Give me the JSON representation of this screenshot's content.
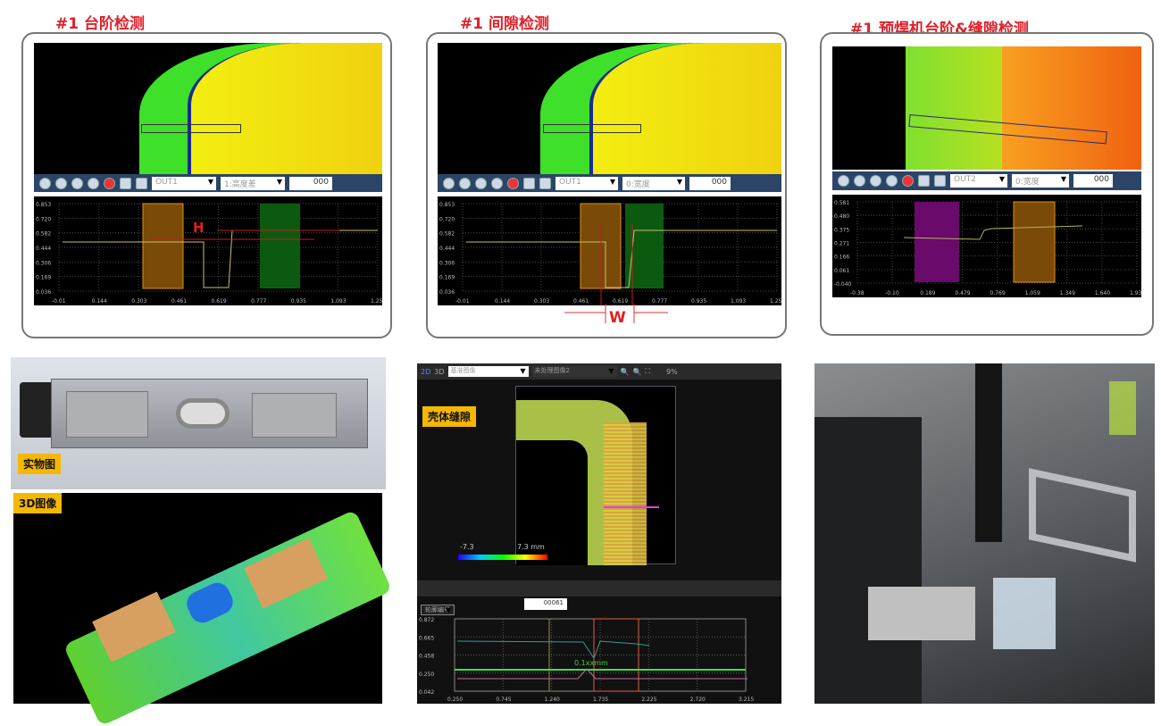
{
  "panels": [
    {
      "title": "#1  台阶检测",
      "out": "OUT1",
      "mode": "1:高度差",
      "value": "000",
      "marker": "H",
      "yticks": [
        "0.853",
        "0.720",
        "0.582",
        "0.444",
        "0.306",
        "0.169",
        "0.036"
      ],
      "xticks": [
        "-0.01",
        "0.144",
        "0.303",
        "0.461",
        "0.619",
        "0.777",
        "0.935",
        "1.093",
        "1.25"
      ]
    },
    {
      "title": "#1  间隙检测",
      "out": "OUT1",
      "mode": "0:宽度",
      "value": "000",
      "marker": "W",
      "yticks": [
        "0.853",
        "0.720",
        "0.582",
        "0.444",
        "0.306",
        "0.169",
        "0.036"
      ],
      "xticks": [
        "-0.01",
        "0.144",
        "0.303",
        "0.461",
        "0.619",
        "0.777",
        "0.935",
        "1.093",
        "1.25"
      ]
    },
    {
      "title": "#1  预焊机台阶&缝隙检测",
      "out": "OUT2",
      "mode": "0:宽度",
      "value": "000",
      "marker": "",
      "yticks": [
        "0.581",
        "0.480",
        "0.375",
        "0.271",
        "0.166",
        "0.061",
        "-0.040"
      ],
      "xticks": [
        "-0.38",
        "-0.10",
        "0.189",
        "0.479",
        "0.769",
        "1.059",
        "1.349",
        "1.640",
        "1.93"
      ]
    }
  ],
  "photo": {
    "label": "实物图"
  },
  "image3d": {
    "label": "3D图像"
  },
  "viewer": {
    "tab2d": "2D",
    "tab3d": "3D",
    "source": "基准图像",
    "processed": "未处理图像2",
    "zoom": "9%",
    "label": "壳体缝隙",
    "scale_min": "-7.3",
    "scale_max": "7.3 mm",
    "profile_select": "轮廓编号",
    "profile_no": "00061",
    "measure": "0.1xxmm",
    "yticks": [
      "0.872",
      "0.665",
      "0.458",
      "0.250",
      "0.042"
    ],
    "xticks": [
      "0.250",
      "0.745",
      "1.240",
      "1.735",
      "2.225",
      "2.720",
      "3.215"
    ]
  },
  "colors": {
    "accent": "#e0202a",
    "tag": "#f5b800",
    "toolbar": "#2c4467"
  }
}
